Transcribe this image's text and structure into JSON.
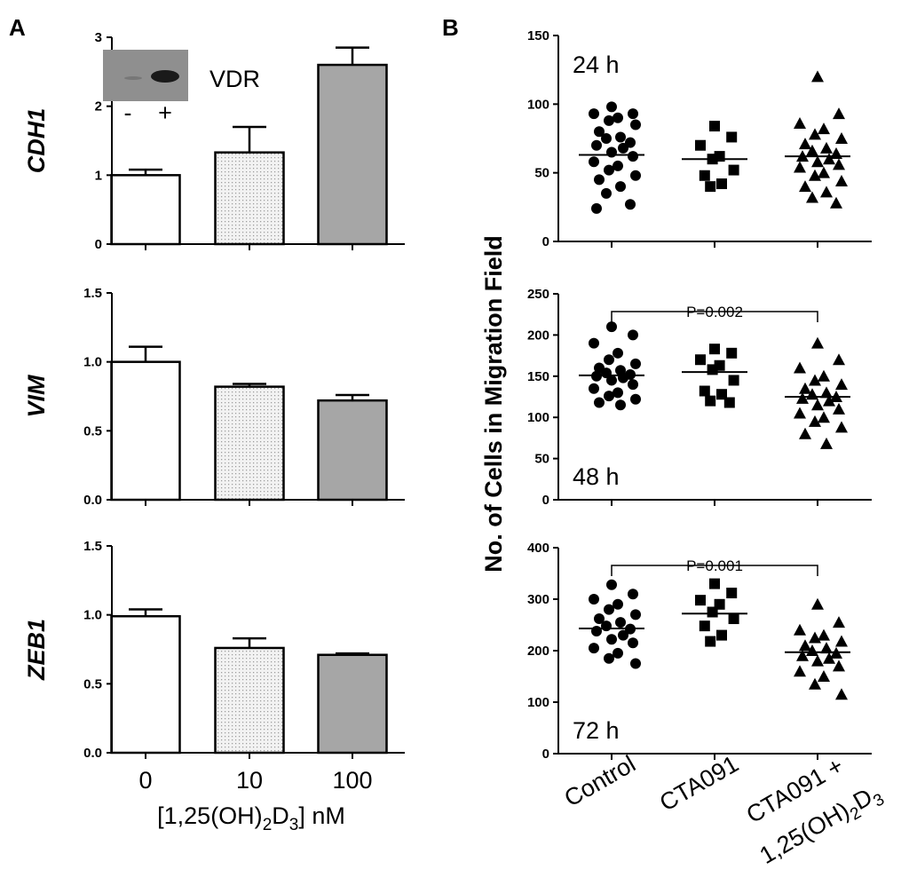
{
  "panel_labels": {
    "a": "A",
    "b": "B"
  },
  "chart_data": [
    {
      "type": "bar",
      "panel": "A",
      "ylabel": "CDH1",
      "categories": [
        "0",
        "10",
        "100"
      ],
      "values": [
        1.0,
        1.33,
        2.6
      ],
      "errors": [
        0.08,
        0.37,
        0.25
      ],
      "ylim": [
        0,
        3
      ],
      "yticks": [
        "0",
        "1",
        "2",
        "3"
      ],
      "inset": {
        "label": "VDR",
        "lanes": [
          "-",
          "+"
        ]
      },
      "fills": [
        "#ffffff",
        "#e6e6e6",
        "#a6a6a6"
      ]
    },
    {
      "type": "bar",
      "panel": "A",
      "ylabel": "VIM",
      "categories": [
        "0",
        "10",
        "100"
      ],
      "values": [
        1.0,
        0.82,
        0.72
      ],
      "errors": [
        0.11,
        0.02,
        0.04
      ],
      "ylim": [
        0,
        1.5
      ],
      "yticks": [
        "0.0",
        "0.5",
        "1.0",
        "1.5"
      ],
      "fills": [
        "#ffffff",
        "#e6e6e6",
        "#a6a6a6"
      ]
    },
    {
      "type": "bar",
      "panel": "A",
      "ylabel": "ZEB1",
      "categories": [
        "0",
        "10",
        "100"
      ],
      "values": [
        0.99,
        0.76,
        0.71
      ],
      "errors": [
        0.05,
        0.07,
        0.01
      ],
      "ylim": [
        0,
        1.5
      ],
      "yticks": [
        "0.0",
        "0.5",
        "1.0",
        "1.5"
      ],
      "xlabel": "[1,25(OH)2D3] nM",
      "fills": [
        "#ffffff",
        "#e6e6e6",
        "#a6a6a6"
      ]
    },
    {
      "type": "scatter",
      "panel": "B",
      "timepoint": "24 h",
      "ylim": [
        0,
        150
      ],
      "yticks": [
        "0",
        "50",
        "100",
        "150"
      ],
      "groups": [
        {
          "name": "Control",
          "marker": "circle",
          "mean": 63,
          "values": [
            98,
            93,
            93,
            90,
            88,
            85,
            80,
            76,
            75,
            72,
            70,
            68,
            65,
            62,
            58,
            55,
            52,
            48,
            45,
            40,
            35,
            27,
            24
          ]
        },
        {
          "name": "CTA091",
          "marker": "square",
          "mean": 60,
          "values": [
            84,
            76,
            70,
            62,
            60,
            52,
            48,
            42,
            40
          ]
        },
        {
          "name": "CTA091 + 1,25(OH)2D3",
          "marker": "triangle",
          "mean": 62,
          "values": [
            120,
            93,
            86,
            82,
            78,
            75,
            71,
            68,
            66,
            64,
            62,
            60,
            58,
            56,
            54,
            50,
            48,
            44,
            40,
            36,
            32,
            28
          ]
        }
      ]
    },
    {
      "type": "scatter",
      "panel": "B",
      "timepoint": "48 h",
      "pvalue": "P=0.002",
      "ylim": [
        0,
        250
      ],
      "yticks": [
        "0",
        "50",
        "100",
        "150",
        "200",
        "250"
      ],
      "groups": [
        {
          "name": "Control",
          "marker": "circle",
          "mean": 151,
          "values": [
            210,
            200,
            190,
            178,
            170,
            165,
            160,
            157,
            154,
            152,
            150,
            148,
            145,
            140,
            135,
            130,
            126,
            122,
            118,
            115
          ]
        },
        {
          "name": "CTA091",
          "marker": "square",
          "mean": 155,
          "values": [
            183,
            178,
            170,
            163,
            158,
            145,
            132,
            128,
            120,
            118
          ]
        },
        {
          "name": "CTA091 + 1,25(OH)2D3",
          "marker": "triangle",
          "mean": 125,
          "values": [
            190,
            170,
            160,
            150,
            145,
            140,
            135,
            130,
            128,
            125,
            123,
            120,
            115,
            110,
            105,
            100,
            95,
            88,
            80,
            68
          ]
        }
      ]
    },
    {
      "type": "scatter",
      "panel": "B",
      "timepoint": "72 h",
      "pvalue": "P=0.001",
      "ylim": [
        0,
        400
      ],
      "yticks": [
        "0",
        "100",
        "200",
        "300",
        "400"
      ],
      "groups": [
        {
          "name": "Control",
          "marker": "circle",
          "mean": 243,
          "values": [
            328,
            310,
            300,
            290,
            280,
            270,
            262,
            255,
            248,
            242,
            238,
            230,
            222,
            215,
            205,
            195,
            185,
            175
          ]
        },
        {
          "name": "CTA091",
          "marker": "square",
          "mean": 272,
          "values": [
            330,
            312,
            298,
            290,
            275,
            262,
            248,
            230,
            218
          ]
        },
        {
          "name": "CTA091 + 1,25(OH)2D3",
          "marker": "triangle",
          "mean": 197,
          "values": [
            290,
            255,
            240,
            230,
            225,
            218,
            210,
            205,
            200,
            195,
            190,
            185,
            180,
            170,
            160,
            150,
            135,
            115
          ]
        }
      ]
    }
  ],
  "panel_a_xlabel": "[1,25(OH)2D3] nM",
  "panel_b_ylabel": "No. of Cells in Migration Field",
  "panel_b_categories": [
    "Control",
    "CTA091",
    "CTA091 +",
    "1,25(OH)2D3"
  ]
}
